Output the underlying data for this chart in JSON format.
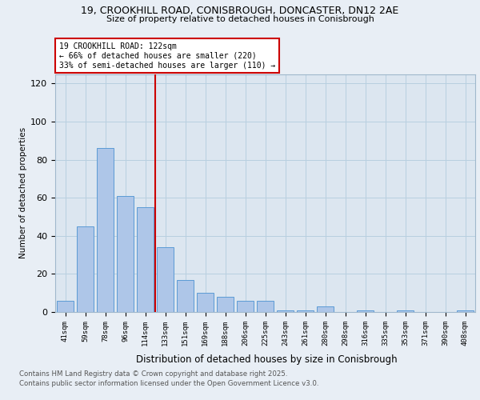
{
  "title1": "19, CROOKHILL ROAD, CONISBROUGH, DONCASTER, DN12 2AE",
  "title2": "Size of property relative to detached houses in Conisbrough",
  "xlabel": "Distribution of detached houses by size in Conisbrough",
  "ylabel": "Number of detached properties",
  "bar_labels": [
    "41sqm",
    "59sqm",
    "78sqm",
    "96sqm",
    "114sqm",
    "133sqm",
    "151sqm",
    "169sqm",
    "188sqm",
    "206sqm",
    "225sqm",
    "243sqm",
    "261sqm",
    "280sqm",
    "298sqm",
    "316sqm",
    "335sqm",
    "353sqm",
    "371sqm",
    "390sqm",
    "408sqm"
  ],
  "bar_values": [
    6,
    45,
    86,
    61,
    55,
    34,
    17,
    10,
    8,
    6,
    6,
    1,
    1,
    3,
    0,
    1,
    0,
    1,
    0,
    0,
    1
  ],
  "bar_color": "#aec6e8",
  "bar_edge_color": "#5b9bd5",
  "vline_x_index": 4.5,
  "annotation_title": "19 CROOKHILL ROAD: 122sqm",
  "annotation_line1": "← 66% of detached houses are smaller (220)",
  "annotation_line2": "33% of semi-detached houses are larger (110) →",
  "annotation_box_color": "#ffffff",
  "annotation_box_edge": "#cc0000",
  "vline_color": "#cc0000",
  "grid_color": "#b8cfe0",
  "ylim": [
    0,
    125
  ],
  "yticks": [
    0,
    20,
    40,
    60,
    80,
    100,
    120
  ],
  "footnote1": "Contains HM Land Registry data © Crown copyright and database right 2025.",
  "footnote2": "Contains public sector information licensed under the Open Government Licence v3.0.",
  "bg_color": "#e8eef5",
  "plot_bg_color": "#dce6f0"
}
